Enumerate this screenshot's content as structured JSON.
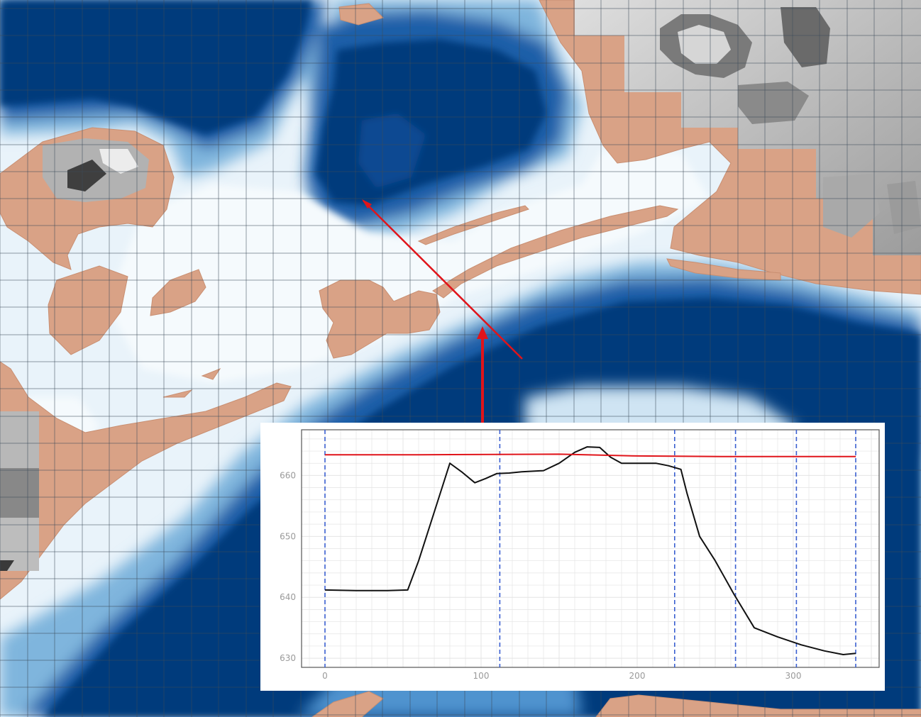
{
  "map": {
    "colors": {
      "deep_water": "#063a7c",
      "mid_water": "#2f7fc1",
      "shallow_water": "#cfe4f3",
      "very_shallow": "#edf5fb",
      "dry_ground": "#d9a286",
      "hillshade_light": "#c7c7c7",
      "hillshade_dark": "#6e6e6e",
      "grid_line": "#3c4a5a",
      "section_line": "#e0141a"
    },
    "layers": [
      "depth-grid",
      "dry-ground-mask",
      "terrain-hillshade",
      "mesh-grid",
      "cross-section-line"
    ]
  },
  "chart_data": {
    "type": "line",
    "xlim": [
      -15,
      355
    ],
    "ylim": [
      628.5,
      667.5
    ],
    "x_ticks": [
      0,
      100,
      200,
      300
    ],
    "y_ticks": [
      630,
      640,
      650,
      660
    ],
    "grid": true,
    "colors": {
      "ground": "#111111",
      "water_surface": "#e0141a",
      "cell_face": "#3a5fd0",
      "grid": "#e4e4e4"
    },
    "series": [
      {
        "kind": "ground",
        "x": [
          0,
          20,
          40,
          53,
          60,
          70,
          80,
          88,
          96,
          103,
          110,
          118,
          126,
          140,
          150,
          160,
          168,
          176,
          183,
          190,
          200,
          212,
          220,
          228,
          232,
          240,
          250,
          262,
          275,
          290,
          305,
          320,
          332,
          340
        ],
        "y": [
          641.2,
          641.1,
          641.1,
          641.2,
          646.0,
          654.0,
          662.0,
          660.5,
          658.8,
          659.5,
          660.3,
          660.4,
          660.6,
          660.8,
          662.0,
          663.8,
          664.7,
          664.6,
          663.0,
          662.0,
          662.0,
          662.0,
          661.6,
          661.0,
          657.0,
          650.0,
          646.0,
          640.5,
          635.0,
          633.5,
          632.2,
          631.2,
          630.6,
          630.8
        ]
      },
      {
        "kind": "water-surface",
        "x": [
          0,
          60,
          150,
          200,
          260,
          340
        ],
        "y": [
          663.4,
          663.4,
          663.5,
          663.2,
          663.1,
          663.1
        ]
      }
    ],
    "cell_faces_x": [
      0,
      112,
      224,
      263,
      302,
      340
    ]
  },
  "callout": {
    "pointer": "profile-to-section-arrow"
  }
}
